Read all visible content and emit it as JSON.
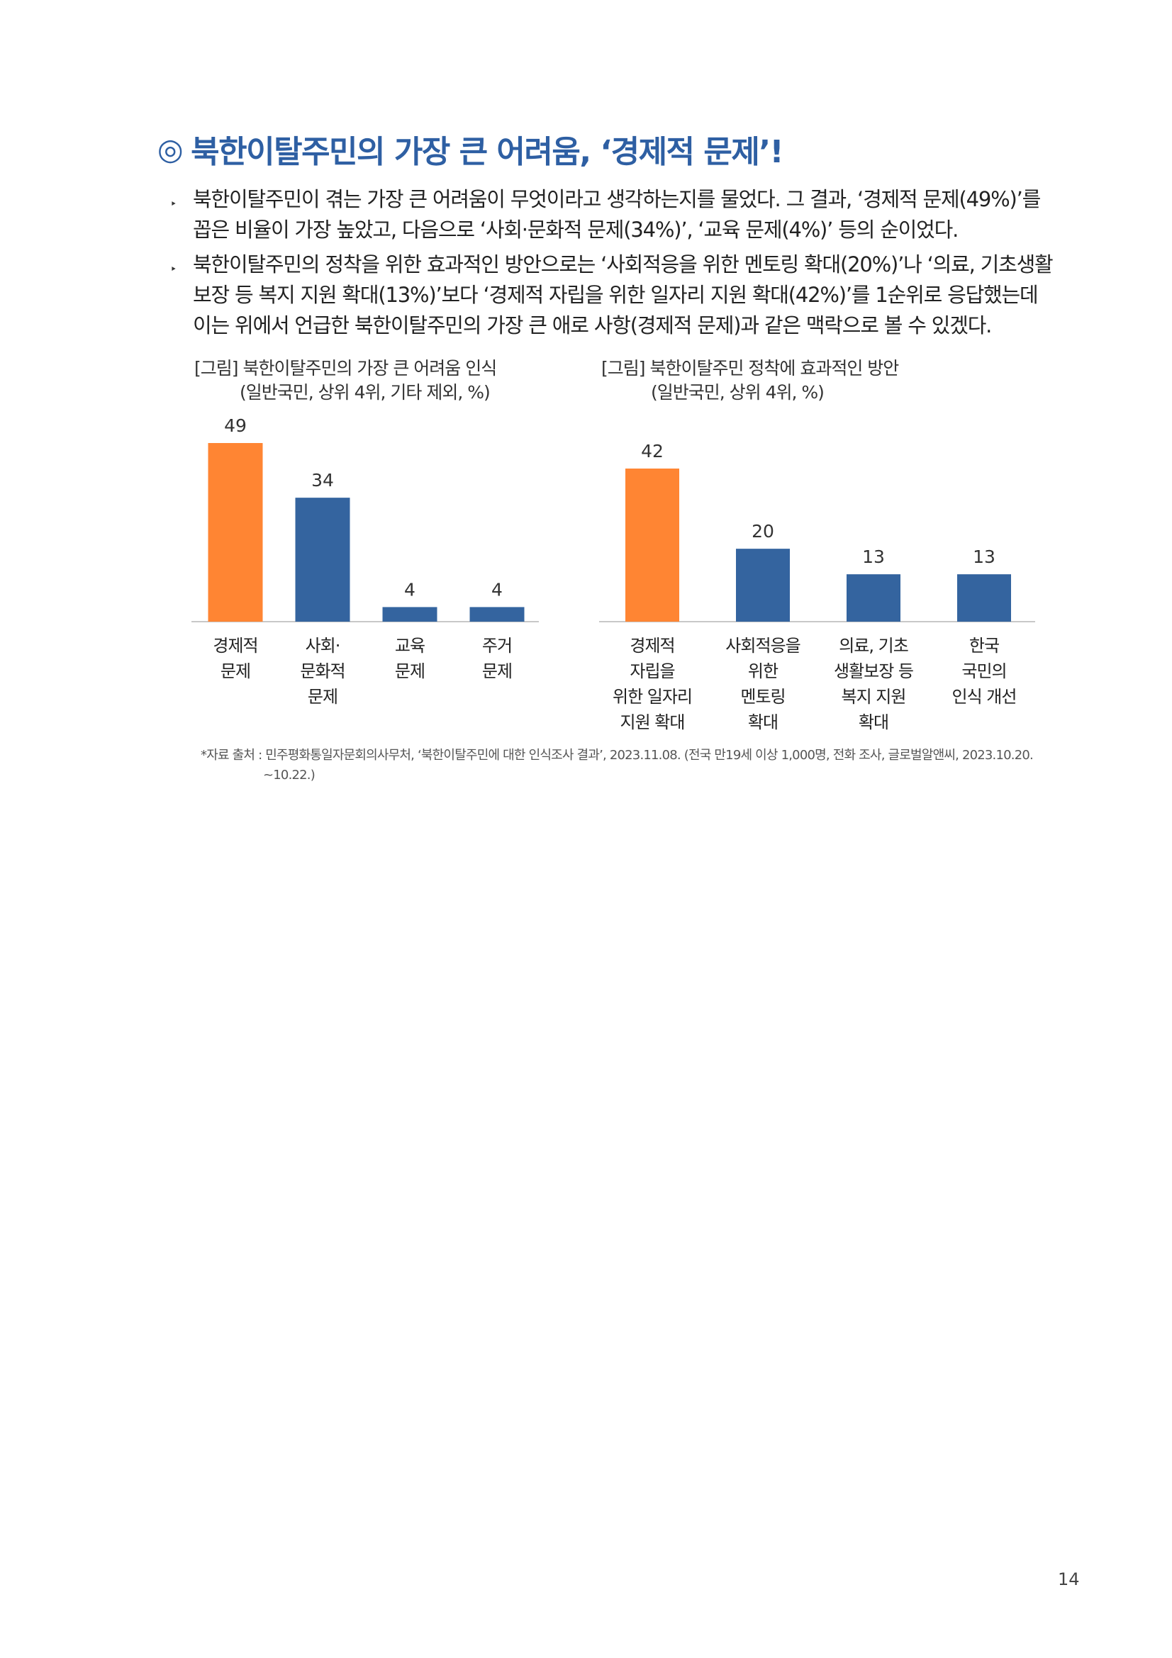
{
  "heading": {
    "mark": "◎",
    "text": "북한이탈주민의 가장 큰 어려움, ‘경제적 문제’!"
  },
  "bullets": [
    {
      "marker": "‣",
      "lines": [
        "북한이탈주민이 겪는 가장 큰 어려움이 무엇이라고 생각하는지를 물었다. 그 결과, ‘경제적 문제(49%)’를",
        "꼽은 비율이 가장 높았고, 다음으로 ‘사회·문화적 문제(34%)’, ‘교육 문제(4%)’ 등의 순이었다."
      ]
    },
    {
      "marker": "‣",
      "lines": [
        "북한이탈주민의 정착을 위한 효과적인 방안으로는 ‘사회적응을 위한 멘토링 확대(20%)’나 ‘의료, 기초생활",
        "보장 등 복지 지원 확대(13%)’보다 ‘경제적 자립을 위한 일자리 지원 확대(42%)’를 1순위로 응답했는데",
        "이는 위에서 언급한 북한이탈주민의 가장 큰 애로 사항(경제적 문제)과 같은 맥락으로 볼 수 있겠다."
      ]
    }
  ],
  "chart_data": [
    {
      "type": "bar",
      "title": "[그림] 북한이탈주민의 가장 큰 어려움 인식",
      "subtitle": "(일반국민, 상위 4위, 기타 제외, %)",
      "categories": [
        [
          "경제적",
          "문제"
        ],
        [
          "사회·",
          "문화적",
          "문제"
        ],
        [
          "교육",
          "문제"
        ],
        [
          "주거",
          "문제"
        ]
      ],
      "values": [
        49,
        34,
        4,
        4
      ],
      "highlight_index": 0,
      "ylim": [
        0,
        49
      ],
      "grid": false
    },
    {
      "type": "bar",
      "title": "[그림] 북한이탈주민 정착에 효과적인 방안",
      "subtitle": "(일반국민, 상위 4위, %)",
      "categories": [
        [
          "경제적",
          "자립을",
          "위한 일자리",
          "지원 확대"
        ],
        [
          "사회적응을",
          "위한",
          "멘토링",
          "확대"
        ],
        [
          "의료, 기초",
          "생활보장 등",
          "복지 지원",
          "확대"
        ],
        [
          "한국",
          "국민의",
          "인식 개선"
        ]
      ],
      "values": [
        42,
        20,
        13,
        13
      ],
      "highlight_index": 0,
      "ylim": [
        0,
        49
      ],
      "grid": false
    }
  ],
  "colors": {
    "highlight": "#FF8533",
    "bar": "#34649F",
    "heading": "#2E5FA3",
    "axis": "#C8C8C8"
  },
  "source": {
    "line1": "*자료 출처 : 민주평화통일자문회의사무처, ‘북한이탈주민에 대한 인식조사 결과’, 2023.11.08. (전국 만19세 이상 1,000명, 전화 조사, 글로벌알앤씨, 2023.10.20.",
    "line2": "~10.22.)"
  },
  "page_number": "14"
}
